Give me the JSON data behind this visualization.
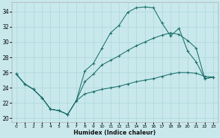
{
  "xlabel": "Humidex (Indice chaleur)",
  "xlim": [
    -0.5,
    23.5
  ],
  "ylim": [
    19.5,
    35.2
  ],
  "xticks": [
    0,
    1,
    2,
    3,
    4,
    5,
    6,
    7,
    8,
    9,
    10,
    11,
    12,
    13,
    14,
    15,
    16,
    17,
    18,
    19,
    20,
    21,
    22,
    23
  ],
  "yticks": [
    20,
    22,
    24,
    26,
    28,
    30,
    32,
    34
  ],
  "bg_color": "#c8e8ec",
  "line_color": "#1a6e6a",
  "grid_color": "#b0d8dc",
  "line1_x": [
    0,
    1,
    2,
    3,
    4,
    5,
    6,
    7,
    8,
    9,
    10,
    11,
    12,
    13,
    14,
    15,
    16,
    17,
    18,
    19,
    20,
    21,
    22,
    23
  ],
  "line1_y": [
    25.8,
    24.5,
    23.8,
    22.7,
    21.2,
    21.0,
    20.5,
    22.3,
    26.2,
    27.2,
    29.2,
    31.2,
    32.2,
    33.9,
    34.5,
    34.6,
    34.5,
    32.5,
    30.8,
    31.8,
    28.8,
    27.4,
    25.2,
    25.4
  ],
  "line2_x": [
    0,
    1,
    2,
    3,
    4,
    5,
    6,
    7,
    8,
    9,
    10,
    11,
    12,
    13,
    14,
    15,
    16,
    17,
    18,
    19,
    20,
    21,
    22,
    23
  ],
  "line2_y": [
    25.8,
    24.5,
    23.8,
    22.7,
    21.2,
    21.0,
    20.5,
    22.3,
    24.8,
    25.8,
    27.0,
    27.6,
    28.2,
    28.9,
    29.5,
    30.0,
    30.5,
    30.9,
    31.2,
    31.0,
    30.2,
    29.2,
    25.2,
    25.4
  ],
  "line3_x": [
    0,
    1,
    2,
    3,
    4,
    5,
    6,
    7,
    8,
    9,
    10,
    11,
    12,
    13,
    14,
    15,
    16,
    17,
    18,
    19,
    20,
    21,
    22,
    23
  ],
  "line3_y": [
    25.8,
    24.5,
    23.8,
    22.7,
    21.2,
    21.0,
    20.5,
    22.3,
    23.2,
    23.5,
    23.8,
    24.0,
    24.2,
    24.5,
    24.8,
    25.0,
    25.2,
    25.5,
    25.8,
    26.0,
    26.0,
    25.9,
    25.5,
    25.4
  ]
}
